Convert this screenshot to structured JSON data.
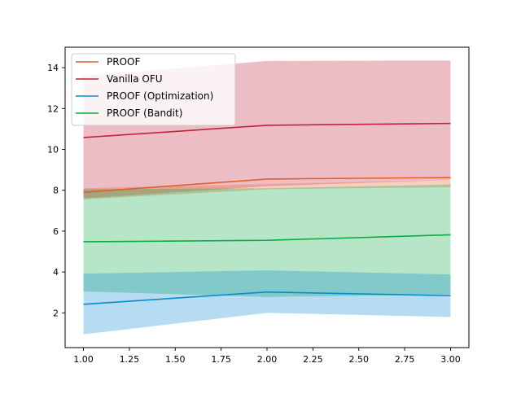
{
  "chart_data": {
    "type": "line",
    "title": "",
    "xlabel": "",
    "ylabel": "",
    "x": [
      1.0,
      2.0,
      3.0
    ],
    "xlim": [
      0.9,
      3.1
    ],
    "ylim": [
      0.3,
      15.0
    ],
    "xticks": [
      "1.00",
      "1.25",
      "1.50",
      "1.75",
      "2.00",
      "2.25",
      "2.50",
      "2.75",
      "3.00"
    ],
    "yticks": [
      "2",
      "4",
      "6",
      "8",
      "10",
      "12",
      "14"
    ],
    "grid": false,
    "legend_position": "top-left",
    "series": [
      {
        "name": "PROOF",
        "color": "#e0602a",
        "values": [
          7.9,
          8.55,
          8.62
        ],
        "lower": [
          7.55,
          8.05,
          8.15
        ],
        "upper": [
          8.1,
          8.3,
          8.5
        ]
      },
      {
        "name": "Vanilla OFU",
        "color": "#c1233e",
        "values": [
          10.58,
          11.18,
          11.27
        ],
        "lower": [
          7.6,
          8.2,
          8.5
        ],
        "upper": [
          13.6,
          14.33,
          14.35
        ]
      },
      {
        "name": "PROOF (Optimization)",
        "color": "#0a8ccc",
        "values": [
          2.42,
          3.02,
          2.84
        ],
        "lower": [
          0.95,
          2.0,
          1.8
        ],
        "upper": [
          3.92,
          4.08,
          3.88
        ]
      },
      {
        "name": "PROOF (Bandit)",
        "color": "#0cab45",
        "values": [
          5.48,
          5.55,
          5.82
        ],
        "lower": [
          3.05,
          2.78,
          2.9
        ],
        "upper": [
          8.05,
          8.1,
          8.28
        ]
      }
    ]
  }
}
